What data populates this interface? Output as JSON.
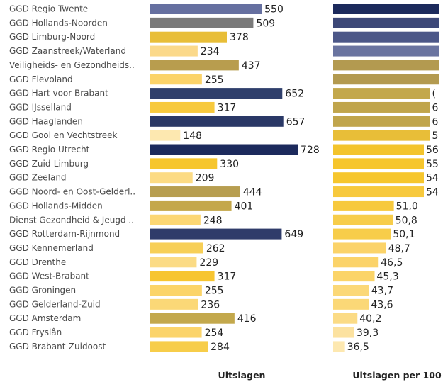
{
  "chart_data": [
    {
      "type": "bar",
      "orientation": "horizontal",
      "xlabel": "Uitslagen",
      "categories": [
        "GGD Regio Twente",
        "GGD Hollands-Noorden",
        "GGD Limburg-Noord",
        "GGD Zaanstreek/Waterland",
        "Veiligheids- en Gezondheids..",
        "GGD Flevoland",
        "GGD Hart voor Brabant",
        "GGD IJsselland",
        "GGD Haaglanden",
        "GGD Gooi en Vechtstreek",
        "GGD Regio Utrecht",
        "GGD Zuid-Limburg",
        "GGD Zeeland",
        "GGD Noord- en Oost-Gelderl..",
        "GGD Hollands-Midden",
        "Dienst Gezondheid & Jeugd ..",
        "GGD Rotterdam-Rijnmond",
        "GGD Kennemerland",
        "GGD Drenthe",
        "GGD West-Brabant",
        "GGD Groningen",
        "GGD Gelderland-Zuid",
        "GGD Amsterdam",
        "GGD Fryslân",
        "GGD Brabant-Zuidoost"
      ],
      "values": [
        550,
        509,
        378,
        234,
        437,
        255,
        652,
        317,
        657,
        148,
        728,
        330,
        209,
        444,
        401,
        248,
        649,
        262,
        229,
        317,
        255,
        236,
        416,
        254,
        284
      ],
      "bar_colors": [
        "#6670a0",
        "#7a7a7a",
        "#e8be38",
        "#fbd98a",
        "#b89d4e",
        "#fbd369",
        "#2f3f6c",
        "#f7c93d",
        "#2a3866",
        "#fde8b0",
        "#1c2a5c",
        "#f6c62d",
        "#fcdb84",
        "#b79e50",
        "#c4a74a",
        "#fcd774",
        "#2f3c6a",
        "#f7cf57",
        "#fbdb85",
        "#f7c531",
        "#fbd468",
        "#fbd877",
        "#c3a84c",
        "#fbd46a",
        "#f7cd4a"
      ]
    },
    {
      "type": "bar",
      "orientation": "horizontal",
      "xlabel": "Uitslagen per 100",
      "categories": [
        "GGD Regio Twente",
        "GGD Hollands-Noorden",
        "GGD Limburg-Noord",
        "GGD Zaanstreek/Waterland",
        "Veiligheids- en Gezondheids..",
        "GGD Flevoland",
        "GGD Hart voor Brabant",
        "GGD IJsselland",
        "GGD Haaglanden",
        "GGD Gooi en Vechtstreek",
        "GGD Regio Utrecht",
        "GGD Zuid-Limburg",
        "GGD Zeeland",
        "GGD Noord- en Oost-Gelderl..",
        "GGD Hollands-Midden",
        "Dienst Gezondheid & Jeugd ..",
        "GGD Rotterdam-Rijnmond",
        "GGD Kennemerland",
        "GGD Drenthe",
        "GGD West-Brabant",
        "GGD Groningen",
        "GGD Gelderland-Zuid",
        "GGD Amsterdam",
        "GGD Fryslân",
        "GGD Brabant-Zuidoost"
      ],
      "value_labels": [
        "",
        "",
        "",
        "",
        "",
        "",
        "(",
        "6",
        "6",
        "5",
        "56",
        "55",
        "54",
        "54",
        "51,0",
        "50,8",
        "50,1",
        "48,7",
        "46,5",
        "45,3",
        "43,7",
        "43,6",
        "40,2",
        "39,3",
        "36,5"
      ],
      "values": [
        null,
        null,
        null,
        null,
        null,
        null,
        null,
        null,
        null,
        null,
        null,
        null,
        null,
        null,
        51.0,
        50.8,
        50.1,
        48.7,
        46.5,
        45.3,
        43.7,
        43.6,
        40.2,
        39.3,
        36.5
      ],
      "bar_colors": [
        "#1c2a5c",
        "#3d4878",
        "#4c5788",
        "#6a74a0",
        "#b39a50",
        "#b39a50",
        "#c3a84c",
        "#c0a54c",
        "#c0a54c",
        "#e8be38",
        "#f3c42c",
        "#f6c62d",
        "#f6c62d",
        "#f7c93d",
        "#f7c93d",
        "#f7cd4a",
        "#f7cd4a",
        "#fbd369",
        "#fbd369",
        "#fbd468",
        "#fbd877",
        "#fbd877",
        "#fbdb85",
        "#fce2a0",
        "#fde8b0"
      ]
    }
  ]
}
